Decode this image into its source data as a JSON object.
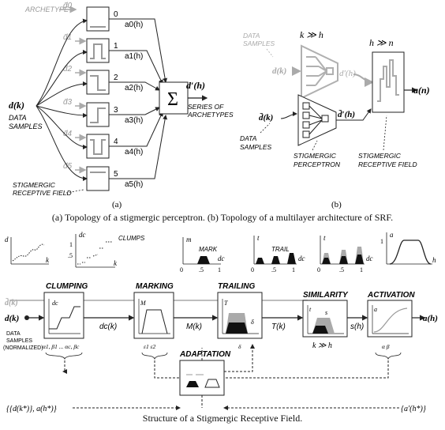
{
  "fig_a": {
    "archetype_label": "ARCHETYPE",
    "input": "d(k)",
    "input_caption": [
      "DATA",
      "SAMPLES"
    ],
    "archetype_inputs": [
      "d̄0",
      "d̄1",
      "d̄2",
      "d̄3",
      "d̄4",
      "d̄5"
    ],
    "indices": [
      "0",
      "1",
      "2",
      "3",
      "4",
      "5"
    ],
    "activations": [
      "a0(h)",
      "a1(h)",
      "a2(h)",
      "a3(h)",
      "a4(h)",
      "a5(h)"
    ],
    "sum_symbol": "Σ",
    "output": "d′(h)",
    "output_caption": [
      "SERIES OF",
      "ARCHETYPES"
    ],
    "srf_caption": [
      "STIGMERGIC",
      "RECEPTIVE FIELD"
    ],
    "panel_label": "(a)"
  },
  "fig_b": {
    "data_samples_grey": [
      "DATA",
      "SAMPLES"
    ],
    "d_grey": "d(k)",
    "k_rel": "k ≫ h",
    "d_prime_grey": "d′(h)",
    "h_rel": "h ≫ n",
    "d_bar": "d̄(k)",
    "d_prime": "d̄′(h)",
    "output": "a(n)",
    "data_samples": [
      "DATA",
      "SAMPLES"
    ],
    "perceptron_caption": [
      "STIGMERGIC",
      "PERCEPTRON"
    ],
    "srf_caption": [
      "STIGMERGIC",
      "RECEPTIVE FIELD"
    ],
    "panel_label": "(b)"
  },
  "caption_top": "(a) Topology of a stigmergic perceptron. (b) Topology of a multilayer architecture of SRF.",
  "fig_c": {
    "plots": {
      "raw": {
        "yl": "d",
        "xl": "k"
      },
      "clump": {
        "yl": "dc",
        "ticks_y": [
          "1",
          ".5"
        ],
        "note": "CLUMPS",
        "xl": "k"
      },
      "mark": {
        "yl": "m",
        "note": "MARK",
        "ticks_x": [
          "0",
          ".5",
          "1"
        ],
        "xl": "dc"
      },
      "trail": {
        "yl": "t",
        "note": "TRAIL",
        "ticks_x": [
          "0",
          ".5",
          "1"
        ],
        "xl": "dc"
      },
      "sim": {
        "yl": "t",
        "ticks_x": [
          "0",
          ".5",
          "1"
        ],
        "xl": "dc"
      },
      "act": {
        "yl": "a",
        "ticks_y": [
          "1"
        ],
        "xl": "h"
      }
    },
    "stages": [
      "CLUMPING",
      "MARKING",
      "TRAILING",
      "SIMILARITY",
      "ACTIVATION",
      "ADAPTATION"
    ],
    "signals": [
      "dc(k)",
      "M(k)",
      "T(k)",
      "s(h)"
    ],
    "input": "d(k)",
    "input_grey": "d̄(k)",
    "output": "a(h)",
    "input_caption": [
      "DATA",
      "SAMPLES",
      "(NORMALIZED)"
    ],
    "k_rel": "k ≫ h",
    "params_clump": "α1, β1 ... αc, βc",
    "params_mark": "ε1  ε2",
    "params_trail": "δ",
    "params_act": "α  β",
    "feedback_left": "{{d(k*)}, a(h*)}",
    "feedback_right": "{a′(h*)}"
  },
  "caption_bottom": "Structure of a Stigmergic Receptive Field."
}
